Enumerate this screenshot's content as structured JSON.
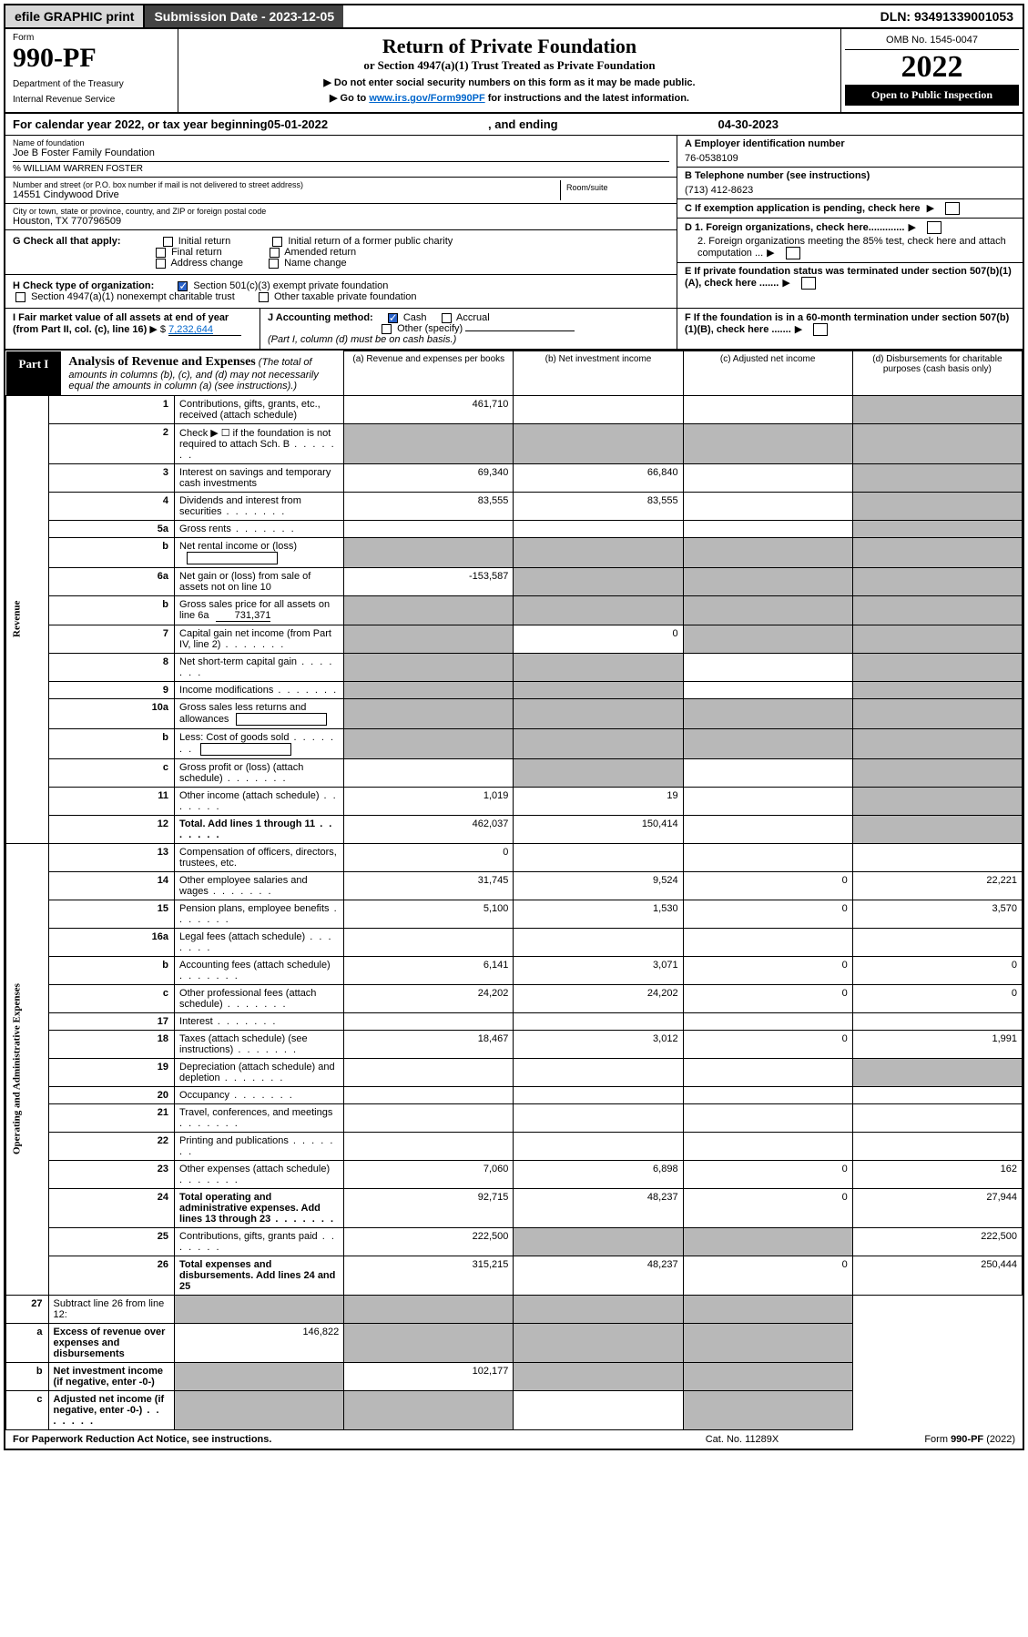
{
  "topbar": {
    "efile": "efile GRAPHIC print",
    "subdate_label": "Submission Date - ",
    "subdate": "2023-12-05",
    "dln_label": "DLN: ",
    "dln": "93491339001053"
  },
  "header": {
    "form_label": "Form",
    "form_num": "990-PF",
    "dept": "Department of the Treasury",
    "irs": "Internal Revenue Service",
    "title": "Return of Private Foundation",
    "subtitle": "or Section 4947(a)(1) Trust Treated as Private Foundation",
    "note1": "▶ Do not enter social security numbers on this form as it may be made public.",
    "note2_pre": "▶ Go to ",
    "note2_link": "www.irs.gov/Form990PF",
    "note2_post": " for instructions and the latest information.",
    "omb": "OMB No. 1545-0047",
    "year": "2022",
    "openpub": "Open to Public Inspection"
  },
  "calyear": {
    "pre": "For calendar year 2022, or tax year beginning ",
    "begin": "05-01-2022",
    "mid": ", and ending ",
    "end": "04-30-2023"
  },
  "info": {
    "name_label": "Name of foundation",
    "name": "Joe B Foster Family Foundation",
    "care_of": "% WILLIAM WARREN FOSTER",
    "addr_label": "Number and street (or P.O. box number if mail is not delivered to street address)",
    "addr": "14551 Cindywood Drive",
    "room_label": "Room/suite",
    "city_label": "City or town, state or province, country, and ZIP or foreign postal code",
    "city": "Houston, TX  770796509",
    "ein_label": "A Employer identification number",
    "ein": "76-0538109",
    "tel_label": "B Telephone number (see instructions)",
    "tel": "(713) 412-8623",
    "c_label": "C If exemption application is pending, check here",
    "d1_label": "D 1. Foreign organizations, check here.............",
    "d2_label": "2. Foreign organizations meeting the 85% test, check here and attach computation ...",
    "e_label": "E  If private foundation status was terminated under section 507(b)(1)(A), check here .......",
    "f_label": "F  If the foundation is in a 60-month termination under section 507(b)(1)(B), check here ......."
  },
  "g": {
    "label": "G Check all that apply:",
    "opts": [
      "Initial return",
      "Final return",
      "Address change",
      "Initial return of a former public charity",
      "Amended return",
      "Name change"
    ]
  },
  "h": {
    "label": "H Check type of organization:",
    "opt1": "Section 501(c)(3) exempt private foundation",
    "opt2": "Section 4947(a)(1) nonexempt charitable trust",
    "opt3": "Other taxable private foundation"
  },
  "i": {
    "pre": "I Fair market value of all assets at end of year (from Part II, col. (c), line 16)",
    "arrow": "▶ $",
    "val": "7,232,644"
  },
  "j": {
    "label": "J Accounting method:",
    "cash": "Cash",
    "accrual": "Accrual",
    "other": "Other (specify)",
    "note": "(Part I, column (d) must be on cash basis.)"
  },
  "part1": {
    "tab": "Part I",
    "title": "Analysis of Revenue and Expenses",
    "note": "(The total of amounts in columns (b), (c), and (d) may not necessarily equal the amounts in column (a) (see instructions).)"
  },
  "cols": {
    "a": "(a) Revenue and expenses per books",
    "b": "(b) Net investment income",
    "c": "(c) Adjusted net income",
    "d": "(d) Disbursements for charitable purposes (cash basis only)"
  },
  "sections": {
    "revenue": "Revenue",
    "expenses": "Operating and Administrative Expenses"
  },
  "rows": [
    {
      "n": "1",
      "desc": "Contributions, gifts, grants, etc., received (attach schedule)",
      "a": "461,710",
      "b": "",
      "c": "",
      "d": "",
      "d_shade": true
    },
    {
      "n": "2",
      "desc": "Check ▶ ☐ if the foundation is not required to attach Sch. B",
      "dots": true,
      "a": "",
      "b": "",
      "c": "",
      "d": "",
      "all_shade_bcd": true,
      "a_shade": true
    },
    {
      "n": "3",
      "desc": "Interest on savings and temporary cash investments",
      "a": "69,340",
      "b": "66,840",
      "c": "",
      "d": "",
      "d_shade": true
    },
    {
      "n": "4",
      "desc": "Dividends and interest from securities",
      "dots": true,
      "a": "83,555",
      "b": "83,555",
      "c": "",
      "d": "",
      "d_shade": true
    },
    {
      "n": "5a",
      "desc": "Gross rents",
      "dots": true,
      "a": "",
      "b": "",
      "c": "",
      "d": "",
      "d_shade": true
    },
    {
      "n": "b",
      "desc": "Net rental income or (loss)",
      "inline_box": true,
      "a": "",
      "b": "",
      "c": "",
      "d": "",
      "all_shade_bcd": true,
      "a_shade": true
    },
    {
      "n": "6a",
      "desc": "Net gain or (loss) from sale of assets not on line 10",
      "a": "-153,587",
      "b": "",
      "c": "",
      "d": "",
      "all_shade_bcd": true
    },
    {
      "n": "b",
      "desc": "Gross sales price for all assets on line 6a",
      "inline_val": "731,371",
      "a": "",
      "b": "",
      "c": "",
      "d": "",
      "all_shade": true
    },
    {
      "n": "7",
      "desc": "Capital gain net income (from Part IV, line 2)",
      "dots": true,
      "a": "",
      "b": "0",
      "c": "",
      "d": "",
      "a_shade": true,
      "c_shade": true,
      "d_shade": true
    },
    {
      "n": "8",
      "desc": "Net short-term capital gain",
      "dots": true,
      "a": "",
      "b": "",
      "c": "",
      "d": "",
      "a_shade": true,
      "b_shade": true,
      "d_shade": true
    },
    {
      "n": "9",
      "desc": "Income modifications",
      "dots": true,
      "a": "",
      "b": "",
      "c": "",
      "d": "",
      "a_shade": true,
      "b_shade": true,
      "d_shade": true
    },
    {
      "n": "10a",
      "desc": "Gross sales less returns and allowances",
      "inline_box": true,
      "a": "",
      "b": "",
      "c": "",
      "d": "",
      "all_shade": true
    },
    {
      "n": "b",
      "desc": "Less: Cost of goods sold",
      "dots": true,
      "inline_box": true,
      "a": "",
      "b": "",
      "c": "",
      "d": "",
      "all_shade": true
    },
    {
      "n": "c",
      "desc": "Gross profit or (loss) (attach schedule)",
      "dots": true,
      "a": "",
      "b": "",
      "c": "",
      "d": "",
      "b_shade": true,
      "d_shade": true
    },
    {
      "n": "11",
      "desc": "Other income (attach schedule)",
      "dots": true,
      "a": "1,019",
      "b": "19",
      "c": "",
      "d": "",
      "d_shade": true
    },
    {
      "n": "12",
      "desc": "Total. Add lines 1 through 11",
      "dots": true,
      "bold": true,
      "a": "462,037",
      "b": "150,414",
      "c": "",
      "d": "",
      "d_shade": true
    }
  ],
  "exp_rows": [
    {
      "n": "13",
      "desc": "Compensation of officers, directors, trustees, etc.",
      "a": "0",
      "b": "",
      "c": "",
      "d": ""
    },
    {
      "n": "14",
      "desc": "Other employee salaries and wages",
      "dots": true,
      "a": "31,745",
      "b": "9,524",
      "c": "0",
      "d": "22,221"
    },
    {
      "n": "15",
      "desc": "Pension plans, employee benefits",
      "dots": true,
      "a": "5,100",
      "b": "1,530",
      "c": "0",
      "d": "3,570"
    },
    {
      "n": "16a",
      "desc": "Legal fees (attach schedule)",
      "dots": true,
      "a": "",
      "b": "",
      "c": "",
      "d": ""
    },
    {
      "n": "b",
      "desc": "Accounting fees (attach schedule)",
      "dots": true,
      "a": "6,141",
      "b": "3,071",
      "c": "0",
      "d": "0"
    },
    {
      "n": "c",
      "desc": "Other professional fees (attach schedule)",
      "dots": true,
      "a": "24,202",
      "b": "24,202",
      "c": "0",
      "d": "0"
    },
    {
      "n": "17",
      "desc": "Interest",
      "dots": true,
      "a": "",
      "b": "",
      "c": "",
      "d": ""
    },
    {
      "n": "18",
      "desc": "Taxes (attach schedule) (see instructions)",
      "dots": true,
      "a": "18,467",
      "b": "3,012",
      "c": "0",
      "d": "1,991"
    },
    {
      "n": "19",
      "desc": "Depreciation (attach schedule) and depletion",
      "dots": true,
      "a": "",
      "b": "",
      "c": "",
      "d": "",
      "d_shade": true
    },
    {
      "n": "20",
      "desc": "Occupancy",
      "dots": true,
      "a": "",
      "b": "",
      "c": "",
      "d": ""
    },
    {
      "n": "21",
      "desc": "Travel, conferences, and meetings",
      "dots": true,
      "a": "",
      "b": "",
      "c": "",
      "d": ""
    },
    {
      "n": "22",
      "desc": "Printing and publications",
      "dots": true,
      "a": "",
      "b": "",
      "c": "",
      "d": ""
    },
    {
      "n": "23",
      "desc": "Other expenses (attach schedule)",
      "dots": true,
      "a": "7,060",
      "b": "6,898",
      "c": "0",
      "d": "162"
    },
    {
      "n": "24",
      "desc": "Total operating and administrative expenses. Add lines 13 through 23",
      "dots": true,
      "bold": true,
      "a": "92,715",
      "b": "48,237",
      "c": "0",
      "d": "27,944"
    },
    {
      "n": "25",
      "desc": "Contributions, gifts, grants paid",
      "dots": true,
      "a": "222,500",
      "b": "",
      "c": "",
      "d": "222,500",
      "b_shade": true,
      "c_shade": true
    },
    {
      "n": "26",
      "desc": "Total expenses and disbursements. Add lines 24 and 25",
      "bold": true,
      "a": "315,215",
      "b": "48,237",
      "c": "0",
      "d": "250,444"
    }
  ],
  "final_rows": [
    {
      "n": "27",
      "desc": "Subtract line 26 from line 12:",
      "a": "",
      "b": "",
      "c": "",
      "d": "",
      "all_shade": true
    },
    {
      "n": "a",
      "desc": "Excess of revenue over expenses and disbursements",
      "bold": true,
      "a": "146,822",
      "b": "",
      "c": "",
      "d": "",
      "b_shade": true,
      "c_shade": true,
      "d_shade": true
    },
    {
      "n": "b",
      "desc": "Net investment income (if negative, enter -0-)",
      "bold": true,
      "a": "",
      "b": "102,177",
      "c": "",
      "d": "",
      "a_shade": true,
      "c_shade": true,
      "d_shade": true
    },
    {
      "n": "c",
      "desc": "Adjusted net income (if negative, enter -0-)",
      "bold": true,
      "dots": true,
      "a": "",
      "b": "",
      "c": "",
      "d": "",
      "a_shade": true,
      "b_shade": true,
      "d_shade": true
    }
  ],
  "footer": {
    "left": "For Paperwork Reduction Act Notice, see instructions.",
    "mid": "Cat. No. 11289X",
    "right": "Form 990-PF (2022)"
  }
}
